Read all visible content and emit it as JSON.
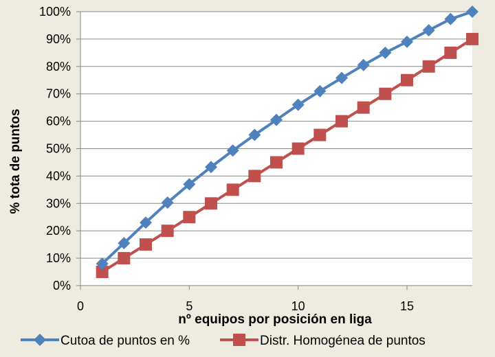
{
  "chart_data": {
    "type": "line",
    "title": "",
    "xlabel": "nº equipos por posición en liga",
    "ylabel": "% tota de puntos",
    "xlim": [
      0,
      18
    ],
    "ylim": [
      0,
      100
    ],
    "x_ticks": [
      0,
      5,
      10,
      15
    ],
    "y_ticks": [
      0,
      10,
      20,
      30,
      40,
      50,
      60,
      70,
      80,
      90,
      100
    ],
    "y_tick_format": "percent",
    "grid": "horizontal",
    "legend_position": "bottom",
    "x": [
      1,
      2,
      3,
      4,
      5,
      6,
      7,
      8,
      9,
      10,
      11,
      12,
      13,
      14,
      15,
      16,
      17,
      18
    ],
    "series": [
      {
        "name": "Cutoa de puntos en %",
        "color": "#4f81bd",
        "marker": "diamond",
        "values": [
          8,
          15.5,
          23,
          30.3,
          37,
          43.3,
          49.3,
          55,
          60.5,
          66,
          71,
          75.8,
          80.5,
          85,
          89,
          93.2,
          97.3,
          100
        ]
      },
      {
        "name": "Distr. Homogénea de puntos",
        "color": "#c0504d",
        "marker": "square",
        "values": [
          5,
          10,
          15,
          20,
          25,
          30,
          35,
          40,
          45,
          50,
          55,
          60,
          65,
          70,
          75,
          80,
          85,
          90
        ]
      }
    ]
  }
}
